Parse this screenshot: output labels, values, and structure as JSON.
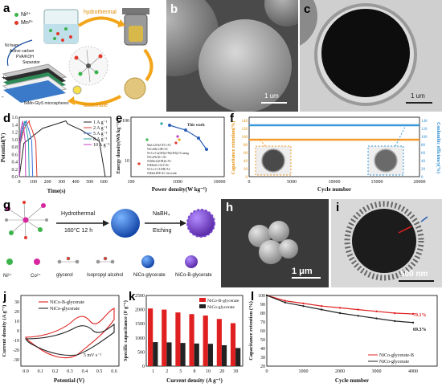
{
  "labels": {
    "a": "a",
    "b": "b",
    "c": "c",
    "d": "d",
    "e": "e",
    "f": "f",
    "g": "g",
    "h": "h",
    "i": "i",
    "j": "j",
    "k": "k",
    "l": "l"
  },
  "panel_a": {
    "legend_ni": "Ni²⁺",
    "legend_mn": "Mn²⁺",
    "hydrothermal": "hydrothermal",
    "assemble": "assemble",
    "layers": [
      "Ni foam",
      "Active carbon",
      "PVA/KOH",
      "Separator",
      "NiMn-GlyS microspheres"
    ],
    "plus": "+",
    "minus": "-"
  },
  "panel_b": {
    "scale": "1 um"
  },
  "panel_c": {
    "scale": "1 um"
  },
  "panel_d": {
    "xlabel": "Time(s)",
    "ylabel": "Potential(V)",
    "yticks": [
      "1.6",
      "1.4",
      "1.2",
      "1.0",
      "0.8",
      "0.6",
      "0.4",
      "0.2",
      "0.0"
    ],
    "xticks": [
      "0",
      "100",
      "200",
      "300",
      "400",
      "500",
      "600"
    ],
    "legend": [
      "1 A g⁻¹",
      "2 A g⁻¹",
      "5 A g⁻¹",
      "8 A g⁻¹",
      "10 A g⁻¹"
    ]
  },
  "panel_e": {
    "xlabel": "Power density(W kg⁻¹)",
    "ylabel": "Energy density(Wh kg⁻¹)",
    "this_work": "This work",
    "xticks": [
      "100",
      "1000",
      "10000"
    ],
    "yticks": [
      "100",
      "10"
    ],
    "refs": [
      "MnCo2O4/CFC//AC",
      "NiCoMn-OH//AC",
      "Ni-Co-Cu(OH)2//Ni(OH)2//Coating",
      "NiCoPh/AC//AC",
      "Ni3Mn12(OH)4//AC",
      "NiMnGL/rGO//AC",
      "Ni-Co-Cl-LDH//AC",
      "NiMnLDH//AC electrode"
    ]
  },
  "panel_f": {
    "xlabel": "Cycle number",
    "ylabel_left": "Capacitance retention(%)",
    "ylabel_right": "Coulombic efficiency(%)",
    "xticks": [
      "0",
      "5000",
      "10000",
      "15000",
      "20000"
    ],
    "yticks": [
      "140",
      "120",
      "100",
      "80",
      "60",
      "40",
      "20",
      "0"
    ]
  },
  "panel_g": {
    "hydrothermal": "Hydrothermal",
    "conditions": "160°C  12 h",
    "nabh4": "NaBH₄",
    "etching": "Etching",
    "legend": [
      "Ni²⁺",
      "Co²⁺",
      "glycerol",
      "Isopropyl alcohol",
      "NiCo-glycerate",
      "NiCo-B-glycerate"
    ]
  },
  "panel_h": {
    "scale": "1 μm"
  },
  "panel_i": {
    "scale": "500 nm"
  },
  "panel_j": {
    "xlabel": "Potential (V)",
    "ylabel": "Current density (A g⁻¹)",
    "scan": "5 mV s⁻¹",
    "legend": [
      "NiCo-B-glycerate",
      "NiCo-glycerate"
    ],
    "xticks": [
      "0.0",
      "0.1",
      "0.2",
      "0.3",
      "0.4",
      "0.5",
      "0.6"
    ],
    "yticks": [
      "30",
      "20",
      "10",
      "0",
      "-10",
      "-20",
      "-30"
    ]
  },
  "panel_k": {
    "xlabel": "Current density (A g⁻¹)",
    "ylabel": "Specific capacitance (F g⁻¹)",
    "legend": [
      "NiCo-B-glycerate",
      "NiCo-glycerate"
    ],
    "yticks": [
      "2500",
      "2000",
      "1500",
      "1000",
      "500",
      "0"
    ]
  },
  "panel_l": {
    "xlabel": "Cycle number",
    "ylabel": "Capacitance retention (%)",
    "pct_red": "79.1%",
    "pct_black": "69.3%",
    "legend": [
      "NiCo-glycerate-B",
      "NiCo-glycerate"
    ],
    "xticks": [
      "0",
      "1000",
      "2000",
      "3000",
      "4000"
    ],
    "yticks": [
      "100",
      "90",
      "80",
      "70",
      "60",
      "50",
      "40",
      "30",
      "20"
    ]
  },
  "chart_data": [
    {
      "type": "line",
      "panel": "d",
      "xlabel": "Time(s)",
      "ylabel": "Potential(V)",
      "ylim": [
        0,
        1.6
      ],
      "xlim": [
        0,
        650
      ],
      "series": [
        {
          "name": "1 A g⁻¹",
          "color": "#222222",
          "charge_end": 330,
          "discharge_end": 610
        },
        {
          "name": "2 A g⁻¹",
          "color": "#e0392b",
          "charge_end": 70,
          "discharge_end": 125
        },
        {
          "name": "5 A g⁻¹",
          "color": "#3a6fd8",
          "charge_end": 50,
          "discharge_end": 95
        },
        {
          "name": "8 A g⁻¹",
          "color": "#2aa4a4",
          "charge_end": 40,
          "discharge_end": 70
        },
        {
          "name": "10 A g⁻¹",
          "color": "#c040c0",
          "charge_end": 25,
          "discharge_end": 45
        }
      ]
    },
    {
      "type": "bar",
      "panel": "k",
      "categories": [
        "1",
        "2",
        "5",
        "8",
        "10",
        "20",
        "30"
      ],
      "series": [
        {
          "name": "NiCo-B-glycerate",
          "color": "#e02020",
          "values": [
            2040,
            2000,
            1900,
            1840,
            1790,
            1670,
            1520
          ]
        },
        {
          "name": "NiCo-glycerate",
          "color": "#222222",
          "values": [
            850,
            840,
            820,
            800,
            790,
            740,
            640
          ]
        }
      ],
      "ylim": [
        0,
        2500
      ]
    },
    {
      "type": "line",
      "panel": "l",
      "xlim": [
        0,
        4000
      ],
      "ylim": [
        20,
        100
      ],
      "series": [
        {
          "name": "NiCo-glycerate-B",
          "color": "#e02020",
          "x": [
            0,
            500,
            1000,
            1500,
            2000,
            2500,
            3000,
            3500,
            4000
          ],
          "values": [
            100,
            94,
            91,
            88,
            86,
            84,
            82,
            80,
            79.1
          ]
        },
        {
          "name": "NiCo-glycerate",
          "color": "#222222",
          "x": [
            0,
            500,
            1000,
            1500,
            2000,
            2500,
            3000,
            3500,
            4000
          ],
          "values": [
            100,
            92,
            88,
            84,
            80,
            77,
            74,
            71,
            69.3
          ]
        }
      ]
    }
  ]
}
